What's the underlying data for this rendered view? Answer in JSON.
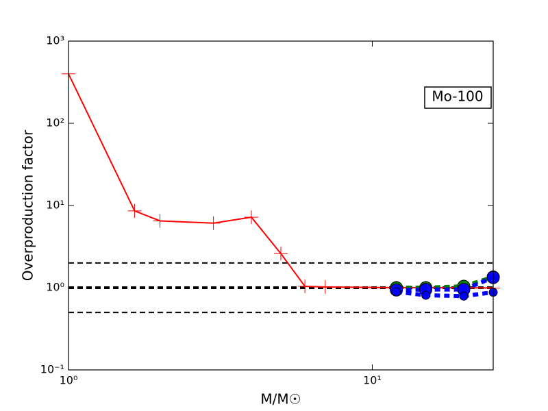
{
  "chart_data": {
    "type": "line",
    "xlabel": "M/M☉",
    "ylabel": "Overproduction factor",
    "annotation": "Mo-100",
    "xlog": true,
    "ylog": true,
    "xlim": [
      1,
      25
    ],
    "ylim": [
      0.1,
      1000
    ],
    "xticks": [
      {
        "value": 1,
        "label": "10⁰"
      },
      {
        "value": 10,
        "label": "10¹"
      }
    ],
    "yticks": [
      {
        "value": 0.1,
        "label": "10⁻¹"
      },
      {
        "value": 1,
        "label": "10⁰"
      },
      {
        "value": 10,
        "label": "10¹"
      },
      {
        "value": 100,
        "label": "10²"
      },
      {
        "value": 1000,
        "label": "10³"
      }
    ],
    "hlines": [
      {
        "y": 2,
        "width": 2
      },
      {
        "y": 1,
        "width": 4
      },
      {
        "y": 0.5,
        "width": 2
      }
    ],
    "series": [
      {
        "color": "#ff0000",
        "linestyle": "solid",
        "marker": "plus",
        "x": [
          1,
          1.65,
          2,
          3,
          4,
          5,
          6,
          7,
          12,
          15,
          20,
          25
        ],
        "values": [
          400,
          8.6,
          6.5,
          6.1,
          7.2,
          2.6,
          1.04,
          1.02,
          1.0,
          1.0,
          1.0,
          0.99
        ]
      },
      {
        "color": "#008000",
        "linestyle": "dashed",
        "marker": "circle",
        "x": [
          12,
          15,
          20,
          25
        ],
        "values": [
          1.0,
          1.0,
          1.04,
          1.35
        ]
      },
      {
        "color": "#0000ff",
        "linestyle": "dashed",
        "marker": "circle",
        "x": [
          12,
          15,
          20,
          25
        ],
        "values": [
          0.94,
          0.95,
          0.95,
          1.33
        ]
      },
      {
        "color": "#0000ff",
        "linestyle": "dashed",
        "marker": "small-circle",
        "x": [
          12,
          15,
          20,
          25
        ],
        "values": [
          0.89,
          0.81,
          0.79,
          0.88
        ]
      }
    ]
  }
}
